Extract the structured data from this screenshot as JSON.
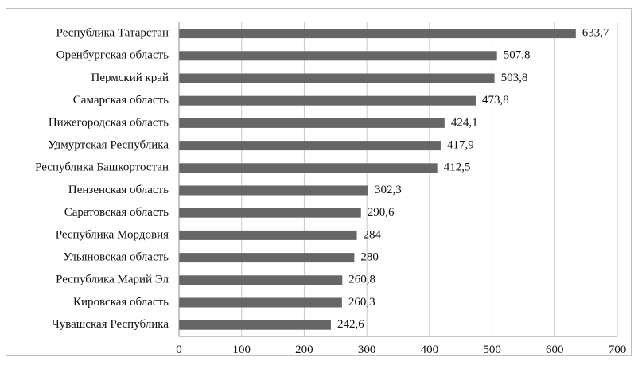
{
  "chart_data": {
    "type": "bar",
    "orientation": "horizontal",
    "categories": [
      "Республика Татарстан",
      "Оренбургская область",
      "Пермский край",
      "Самарская область",
      "Нижегородская область",
      "Удмуртская Республика",
      "Республика Башкортостан",
      "Пензенская область",
      "Саратовская область",
      "Республика Мордовия",
      "Ульяновская область",
      "Республика Марий Эл",
      "Кировская область",
      "Чувашская Республика"
    ],
    "values": [
      633.7,
      507.8,
      503.8,
      473.8,
      424.1,
      417.9,
      412.5,
      302.3,
      290.6,
      284,
      280,
      260.8,
      260.3,
      242.6
    ],
    "value_labels": [
      "633,7",
      "507,8",
      "503,8",
      "473,8",
      "424,1",
      "417,9",
      "412,5",
      "302,3",
      "290,6",
      "284",
      "280",
      "260,8",
      "260,3",
      "242,6"
    ],
    "xlim": [
      0,
      700
    ],
    "x_ticks": [
      0,
      100,
      200,
      300,
      400,
      500,
      600,
      700
    ],
    "x_tick_labels": [
      "0",
      "100",
      "200",
      "300",
      "400",
      "500",
      "600",
      "700"
    ],
    "grid": "vertical",
    "bar_color": "#666666",
    "title": "",
    "xlabel": "",
    "ylabel": ""
  }
}
